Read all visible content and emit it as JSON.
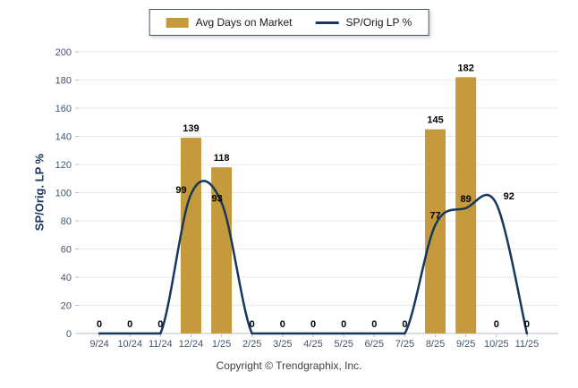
{
  "legend": {
    "bar_label": "Avg Days on Market",
    "line_label": "SP/Orig LP %"
  },
  "y_axis_title": "SP/Orig. LP %",
  "footer": {
    "copyright": "Copyright © Trendgraphix, Inc."
  },
  "colors": {
    "bar": "#C49A3D",
    "line": "#17375D",
    "grid": "#E8E8EA",
    "axis": "#B7C0CC",
    "tick_label": "#44546A",
    "data_label": "#000000"
  },
  "chart_data": {
    "type": "bar",
    "subtype": "bar-and-smooth-line-combo",
    "categories": [
      "9/24",
      "10/24",
      "11/24",
      "12/24",
      "1/25",
      "2/25",
      "3/25",
      "4/25",
      "5/25",
      "6/25",
      "7/25",
      "8/25",
      "9/25",
      "10/25",
      "11/25"
    ],
    "series": [
      {
        "name": "Avg Days on Market",
        "type": "bar",
        "color": "#C49A3D",
        "values": [
          0,
          0,
          0,
          139,
          118,
          0,
          0,
          0,
          0,
          0,
          0,
          145,
          182,
          0,
          0
        ]
      },
      {
        "name": "SP/Orig LP %",
        "type": "line",
        "color": "#17375D",
        "values": [
          0,
          0,
          0,
          99,
          93,
          0,
          0,
          0,
          0,
          0,
          0,
          77,
          89,
          92,
          0
        ]
      }
    ],
    "title": "",
    "xlabel": "",
    "ylabel": "SP/Orig. LP %",
    "ylim": [
      0,
      200
    ],
    "y_ticks": [
      0,
      20,
      40,
      60,
      80,
      100,
      120,
      140,
      160,
      180,
      200
    ],
    "grid": true,
    "legend_position": "top"
  }
}
